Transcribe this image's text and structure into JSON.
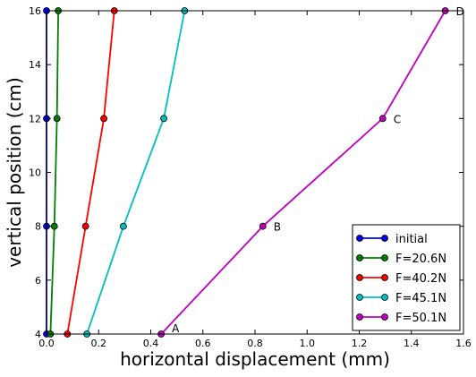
{
  "chart_data": {
    "type": "line",
    "xlabel": "horizontal displacement (mm)",
    "ylabel": "vertical position (cm)",
    "xlim": [
      0.0,
      1.6
    ],
    "ylim": [
      4,
      16
    ],
    "x_ticks": [
      "0.0",
      "0.2",
      "0.4",
      "0.6",
      "0.8",
      "1.0",
      "1.2",
      "1.4",
      "1.6"
    ],
    "y_ticks": [
      "4",
      "6",
      "8",
      "10",
      "12",
      "14",
      "16"
    ],
    "legend_position": "bottom-right",
    "grid": false,
    "series": [
      {
        "name": "initial",
        "color": "#0000ff",
        "points": [
          [
            0.0,
            4
          ],
          [
            0.0,
            8
          ],
          [
            0.0,
            12
          ],
          [
            0.0,
            16
          ]
        ]
      },
      {
        "name": "F=20.6N",
        "color": "#008000",
        "points": [
          [
            0.015,
            4
          ],
          [
            0.03,
            8
          ],
          [
            0.04,
            12
          ],
          [
            0.045,
            16
          ]
        ]
      },
      {
        "name": "F=40.2N",
        "color": "#ff0000",
        "points": [
          [
            0.08,
            4
          ],
          [
            0.15,
            8
          ],
          [
            0.22,
            12
          ],
          [
            0.26,
            16
          ]
        ]
      },
      {
        "name": "F=45.1N",
        "color": "#00bfbf",
        "points": [
          [
            0.155,
            4
          ],
          [
            0.295,
            8
          ],
          [
            0.45,
            12
          ],
          [
            0.53,
            16
          ]
        ]
      },
      {
        "name": "F=50.1N",
        "color": "#bf00bf",
        "points": [
          [
            0.44,
            4
          ],
          [
            0.83,
            8
          ],
          [
            1.29,
            12
          ],
          [
            1.53,
            16
          ]
        ]
      }
    ],
    "annotations": [
      {
        "text": "A",
        "x": 0.44,
        "y": 4
      },
      {
        "text": "B",
        "x": 0.83,
        "y": 8
      },
      {
        "text": "C",
        "x": 1.29,
        "y": 12
      },
      {
        "text": "D",
        "x": 1.53,
        "y": 16
      }
    ]
  }
}
